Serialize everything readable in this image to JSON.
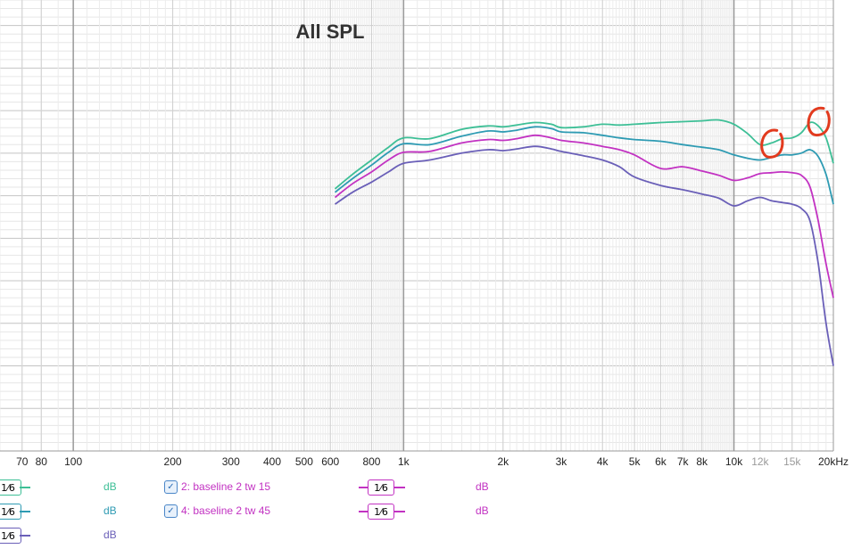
{
  "chart_data": {
    "type": "line",
    "title": "All SPL",
    "xscale": "log",
    "xlim": [
      60,
      20000
    ],
    "x_ticks": [
      {
        "value": 70,
        "label": "70"
      },
      {
        "value": 80,
        "label": "80"
      },
      {
        "value": 100,
        "label": "100"
      },
      {
        "value": 200,
        "label": "200"
      },
      {
        "value": 300,
        "label": "300"
      },
      {
        "value": 400,
        "label": "400"
      },
      {
        "value": 500,
        "label": "500"
      },
      {
        "value": 600,
        "label": "600"
      },
      {
        "value": 800,
        "label": "800"
      },
      {
        "value": 1000,
        "label": "1k"
      },
      {
        "value": 2000,
        "label": "2k"
      },
      {
        "value": 3000,
        "label": "3k"
      },
      {
        "value": 4000,
        "label": "4k"
      },
      {
        "value": 5000,
        "label": "5k"
      },
      {
        "value": 6000,
        "label": "6k"
      },
      {
        "value": 7000,
        "label": "7k"
      },
      {
        "value": 8000,
        "label": "8k"
      },
      {
        "value": 10000,
        "label": "10k"
      },
      {
        "value": 12000,
        "label": "12k"
      },
      {
        "value": 15000,
        "label": "15k"
      },
      {
        "value": 20000,
        "label": "20kHz"
      }
    ],
    "grid": true,
    "series": [
      {
        "color": "#3dbf96",
        "x": [
          620,
          700,
          800,
          900,
          1000,
          1200,
          1500,
          1800,
          2000,
          2200,
          2500,
          2800,
          3000,
          3500,
          4000,
          4500,
          5000,
          6000,
          7000,
          8000,
          9000,
          10000,
          11000,
          12000,
          13000,
          14000,
          15000,
          16000,
          17000,
          18000,
          19000,
          20000
        ],
        "y": [
          -9.2,
          -7.5,
          -5.8,
          -4.3,
          -3.2,
          -3.3,
          -2.2,
          -1.8,
          -1.9,
          -1.7,
          -1.4,
          -1.6,
          -2.0,
          -1.9,
          -1.6,
          -1.7,
          -1.6,
          -1.4,
          -1.3,
          -1.2,
          -1.1,
          -1.6,
          -2.7,
          -4.0,
          -3.8,
          -3.3,
          -3.2,
          -2.6,
          -1.4,
          -1.8,
          -3.2,
          -6.2
        ]
      },
      {
        "color": "#2e9bb3",
        "x": [
          620,
          700,
          800,
          900,
          1000,
          1200,
          1500,
          1800,
          2000,
          2200,
          2500,
          2800,
          3000,
          3500,
          4000,
          4500,
          5000,
          6000,
          7000,
          8000,
          9000,
          10000,
          11000,
          12000,
          13000,
          14000,
          15000,
          16000,
          17000,
          18000,
          19000,
          20000
        ],
        "y": [
          -9.6,
          -8.0,
          -6.4,
          -4.9,
          -3.9,
          -4.0,
          -3.0,
          -2.4,
          -2.5,
          -2.3,
          -1.9,
          -2.1,
          -2.5,
          -2.6,
          -2.9,
          -3.2,
          -3.4,
          -3.6,
          -4.0,
          -4.3,
          -4.6,
          -5.2,
          -5.6,
          -5.8,
          -5.5,
          -5.2,
          -5.2,
          -5.0,
          -4.6,
          -5.4,
          -7.5,
          -11.0
        ]
      },
      {
        "color": "#c232c2",
        "x": [
          620,
          700,
          800,
          900,
          1000,
          1200,
          1500,
          1800,
          2000,
          2200,
          2500,
          2800,
          3000,
          3500,
          4000,
          4500,
          5000,
          6000,
          7000,
          8000,
          9000,
          10000,
          11000,
          12000,
          13000,
          14000,
          15000,
          16000,
          17000,
          18000,
          19000,
          20000
        ],
        "y": [
          -10.2,
          -8.6,
          -7.2,
          -5.8,
          -4.9,
          -4.8,
          -3.8,
          -3.4,
          -3.5,
          -3.3,
          -2.9,
          -3.2,
          -3.5,
          -3.8,
          -4.2,
          -4.6,
          -5.2,
          -6.8,
          -6.6,
          -7.1,
          -7.6,
          -8.2,
          -7.9,
          -7.4,
          -7.3,
          -7.2,
          -7.3,
          -7.6,
          -9.0,
          -13.0,
          -18.0,
          -22.0
        ]
      },
      {
        "color": "#6a5fb8",
        "x": [
          620,
          700,
          800,
          900,
          1000,
          1200,
          1500,
          1800,
          2000,
          2200,
          2500,
          2800,
          3000,
          3500,
          4000,
          4500,
          5000,
          6000,
          7000,
          8000,
          9000,
          10000,
          11000,
          12000,
          13000,
          14000,
          15000,
          16000,
          17000,
          18000,
          19000,
          20000
        ],
        "y": [
          -11.0,
          -9.6,
          -8.4,
          -7.2,
          -6.2,
          -5.8,
          -5.0,
          -4.6,
          -4.7,
          -4.5,
          -4.2,
          -4.5,
          -4.8,
          -5.3,
          -5.8,
          -6.6,
          -7.8,
          -8.8,
          -9.3,
          -9.8,
          -10.3,
          -11.2,
          -10.6,
          -10.2,
          -10.6,
          -10.8,
          -11.0,
          -11.5,
          -13.0,
          -18.0,
          -25.0,
          -30.0
        ]
      }
    ],
    "ylim": [
      -40,
      13
    ]
  },
  "annotations": [
    {
      "shape": "circle-mark",
      "x": 13000,
      "y": -3.8,
      "color": "#e23a1e"
    },
    {
      "shape": "circle-mark",
      "x": 18000,
      "y": -1.2,
      "color": "#e23a1e"
    }
  ],
  "legend": {
    "rows": [
      {
        "smoothing_left": "1⁄6",
        "unit_left": "dB",
        "color_left": "#3dbf96",
        "name": "2: baseline 2 tw 15",
        "smoothing_right": "1⁄6",
        "unit_right": "dB",
        "color_right": "#c232c2"
      },
      {
        "smoothing_left": "1⁄6",
        "unit_left": "dB",
        "color_left": "#2e9bb3",
        "name": "4: baseline 2 tw 45",
        "smoothing_right": "1⁄6",
        "unit_right": "dB",
        "color_right": "#c232c2"
      },
      {
        "smoothing_left": "1⁄6",
        "unit_left": "dB",
        "color_left": "#6a5fb8"
      }
    ]
  }
}
